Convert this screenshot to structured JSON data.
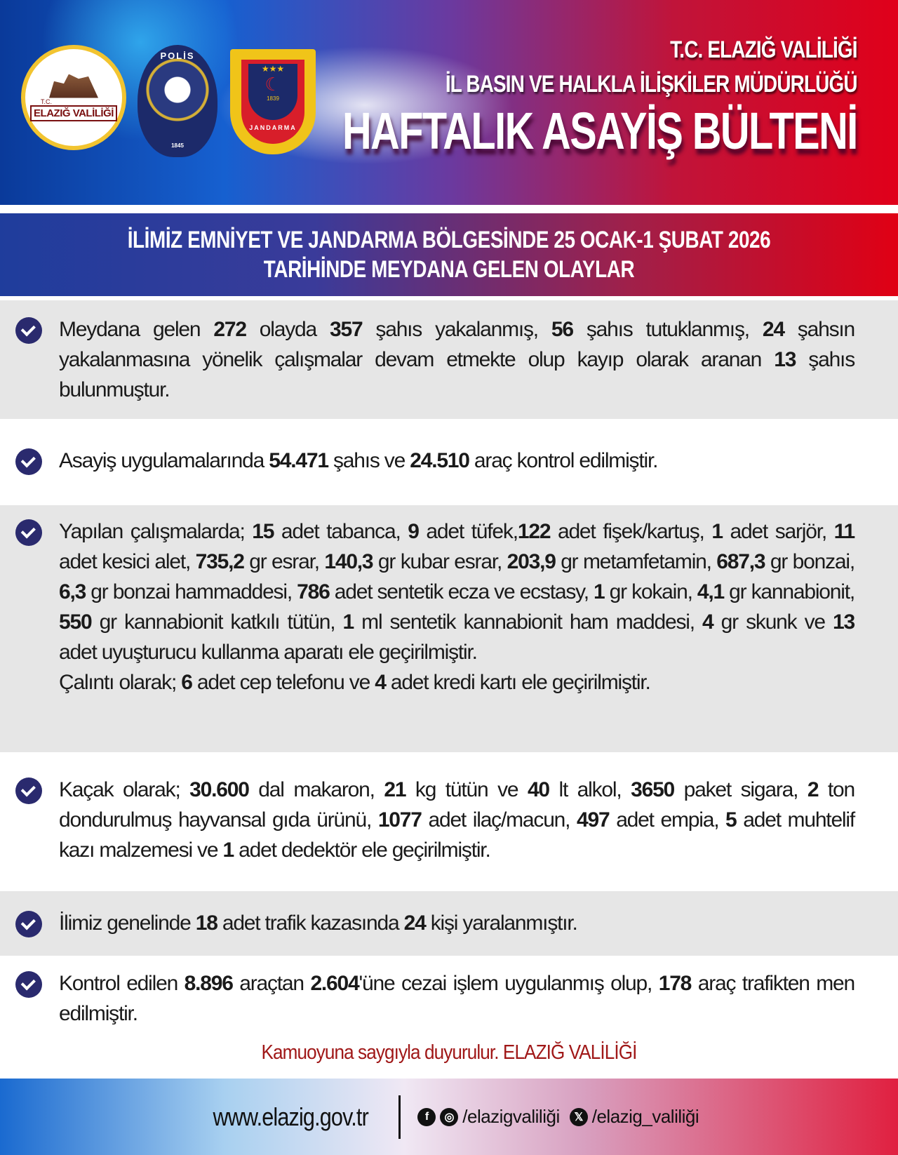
{
  "header": {
    "logo_valilik_small": "T.C.",
    "logo_valilik": "ELAZIĞ VALİLİĞİ",
    "polis_badge": "POLİS",
    "polis_year": "1845",
    "jandarma_badge": "JANDARMA",
    "jandarma_year": "1839",
    "title_line1": "T.C. ELAZIĞ VALİLİĞİ",
    "title_line2": "İL BASIN VE HALKLA İLİŞKİLER MÜDÜRLÜĞÜ",
    "title_main": "HAFTALIK ASAYİŞ BÜLTENİ"
  },
  "banner": {
    "line1": "İLİMİZ EMNİYET VE JANDARMA BÖLGESİNDE 25 OCAK-1 ŞUBAT 2026",
    "line2": "TARİHİNDE MEYDANA GELEN OLAYLAR"
  },
  "items": [
    {
      "segments": [
        {
          "t": "Meydana gelen "
        },
        {
          "t": "272",
          "b": true
        },
        {
          "t": " olayda "
        },
        {
          "t": "357",
          "b": true
        },
        {
          "t": " şahıs yakalanmış, "
        },
        {
          "t": "56",
          "b": true
        },
        {
          "t": " şahıs tutuklanmış, "
        },
        {
          "t": "24",
          "b": true
        },
        {
          "t": " şahsın yakalanmasına yönelik çalışmalar devam etmekte olup kayıp olarak aranan "
        },
        {
          "t": "13",
          "b": true
        },
        {
          "t": " şahıs bulunmuştur."
        }
      ]
    },
    {
      "segments": [
        {
          "t": "Asayiş uygulamalarında "
        },
        {
          "t": "54.471",
          "b": true
        },
        {
          "t": " şahıs ve "
        },
        {
          "t": "24.510",
          "b": true
        },
        {
          "t": " araç kontrol edilmiştir."
        }
      ]
    },
    {
      "segments": [
        {
          "t": "Yapılan çalışmalarda; "
        },
        {
          "t": "15",
          "b": true
        },
        {
          "t": " adet tabanca, "
        },
        {
          "t": "9",
          "b": true
        },
        {
          "t": " adet tüfek,"
        },
        {
          "t": "122",
          "b": true
        },
        {
          "t": " adet fişek/kartuş, "
        },
        {
          "t": "1",
          "b": true
        },
        {
          "t": " adet sarjör, "
        },
        {
          "t": "11",
          "b": true
        },
        {
          "t": " adet kesici alet, "
        },
        {
          "t": "735,2",
          "b": true
        },
        {
          "t": " gr esrar, "
        },
        {
          "t": "140,3",
          "b": true
        },
        {
          "t": " gr kubar esrar, "
        },
        {
          "t": "203,9",
          "b": true
        },
        {
          "t": " gr metamfetamin, "
        },
        {
          "t": "687,3",
          "b": true
        },
        {
          "t": " gr bonzai, "
        },
        {
          "t": "6,3",
          "b": true
        },
        {
          "t": " gr bonzai hammaddesi, "
        },
        {
          "t": "786",
          "b": true
        },
        {
          "t": " adet sentetik ecza ve ecstasy, "
        },
        {
          "t": "1",
          "b": true
        },
        {
          "t": " gr kokain, "
        },
        {
          "t": "4,1",
          "b": true
        },
        {
          "t": " gr kannabionit, "
        },
        {
          "t": "550",
          "b": true
        },
        {
          "t": " gr kannabionit katkılı tütün, "
        },
        {
          "t": "1",
          "b": true
        },
        {
          "t": " ml sentetik kannabionit ham maddesi, "
        },
        {
          "t": "4",
          "b": true
        },
        {
          "t": " gr skunk ve "
        },
        {
          "t": "13",
          "b": true
        },
        {
          "t": " adet uyuşturucu kullanma aparatı ele geçirilmiştir."
        }
      ],
      "extra": [
        {
          "t": "Çalıntı olarak;  "
        },
        {
          "t": "6",
          "b": true
        },
        {
          "t": " adet cep telefonu ve "
        },
        {
          "t": "4",
          "b": true
        },
        {
          "t": " adet kredi kartı ele geçirilmiştir."
        }
      ]
    },
    {
      "segments": [
        {
          "t": "Kaçak olarak; "
        },
        {
          "t": "30.600",
          "b": true
        },
        {
          "t": " dal makaron, "
        },
        {
          "t": "21",
          "b": true
        },
        {
          "t": " kg tütün ve "
        },
        {
          "t": "40",
          "b": true
        },
        {
          "t": " lt alkol, "
        },
        {
          "t": "3650",
          "b": true
        },
        {
          "t": " paket sigara, "
        },
        {
          "t": "2",
          "b": true
        },
        {
          "t": " ton dondurulmuş hayvansal gıda ürünü, "
        },
        {
          "t": "1077",
          "b": true
        },
        {
          "t": " adet ilaç/macun, "
        },
        {
          "t": "497",
          "b": true
        },
        {
          "t": " adet empia, "
        },
        {
          "t": "5",
          "b": true
        },
        {
          "t": " adet muhtelif kazı malzemesi ve "
        },
        {
          "t": "1",
          "b": true
        },
        {
          "t": " adet dedektör ele geçirilmiştir."
        }
      ]
    },
    {
      "segments": [
        {
          "t": "İlimiz genelinde "
        },
        {
          "t": "18",
          "b": true
        },
        {
          "t": " adet trafik kazasında "
        },
        {
          "t": "24",
          "b": true
        },
        {
          "t": " kişi yaralanmıştır."
        }
      ]
    },
    {
      "segments": [
        {
          "t": "Kontrol edilen "
        },
        {
          "t": "8.896",
          "b": true
        },
        {
          "t": " araçtan "
        },
        {
          "t": "2.604",
          "b": true
        },
        {
          "t": "'üne cezai işlem uygulanmış olup, "
        },
        {
          "t": "178",
          "b": true
        },
        {
          "t": " araç trafikten men edilmiştir."
        }
      ]
    }
  ],
  "signoff": "Kamuoyuna saygıyla duyurulur. ELAZIĞ VALİLİĞİ",
  "footer": {
    "website": "www.elazig.gov.tr",
    "social_handle_1": "/elazigvaliliği",
    "social_handle_2": "/elazig_valiliği",
    "icons": [
      "facebook-icon",
      "instagram-icon",
      "x-icon"
    ]
  },
  "colors": {
    "check": "#2a2a6e",
    "signoff": "#a01818",
    "banner_blue": "#1f3d9c",
    "banner_red": "#e00014"
  }
}
